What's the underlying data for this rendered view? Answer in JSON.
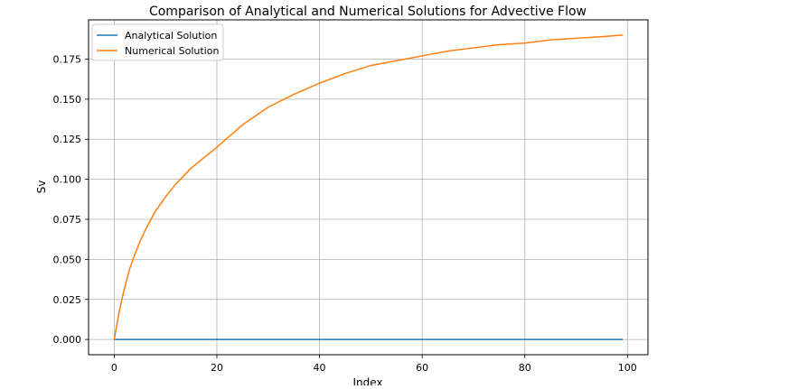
{
  "chart_data": {
    "type": "line",
    "title": "Comparison of Analytical and Numerical Solutions for Advective Flow",
    "xlabel": "Index",
    "ylabel": "Sv",
    "xlim": [
      -5,
      104
    ],
    "ylim": [
      -0.0095,
      0.1995
    ],
    "grid": true,
    "legend_position": "upper-left",
    "x_ticks": [
      0,
      20,
      40,
      60,
      80,
      100
    ],
    "x_tick_labels": [
      "0",
      "20",
      "40",
      "60",
      "80",
      "100"
    ],
    "y_ticks": [
      0.0,
      0.025,
      0.05,
      0.075,
      0.1,
      0.125,
      0.15,
      0.175
    ],
    "y_tick_labels": [
      "0.000",
      "0.025",
      "0.050",
      "0.075",
      "0.100",
      "0.125",
      "0.150",
      "0.175"
    ],
    "x": [
      0,
      1,
      2,
      3,
      4,
      5,
      6,
      8,
      10,
      12,
      15,
      20,
      25,
      30,
      35,
      40,
      45,
      50,
      55,
      60,
      65,
      70,
      75,
      80,
      85,
      90,
      95,
      99
    ],
    "series": [
      {
        "name": "Analytical Solution",
        "color": "#1f77b4",
        "values": [
          0,
          0,
          0,
          0,
          0,
          0,
          0,
          0,
          0,
          0,
          0,
          0,
          0,
          0,
          0,
          0,
          0,
          0,
          0,
          0,
          0,
          0,
          0,
          0,
          0,
          0,
          0,
          0
        ]
      },
      {
        "name": "Numerical Solution",
        "color": "#ff7f0e",
        "values": [
          0.0,
          0.018,
          0.032,
          0.044,
          0.053,
          0.061,
          0.068,
          0.08,
          0.089,
          0.097,
          0.107,
          0.12,
          0.134,
          0.145,
          0.153,
          0.16,
          0.166,
          0.171,
          0.174,
          0.177,
          0.18,
          0.182,
          0.184,
          0.185,
          0.187,
          0.188,
          0.189,
          0.19
        ]
      }
    ]
  }
}
